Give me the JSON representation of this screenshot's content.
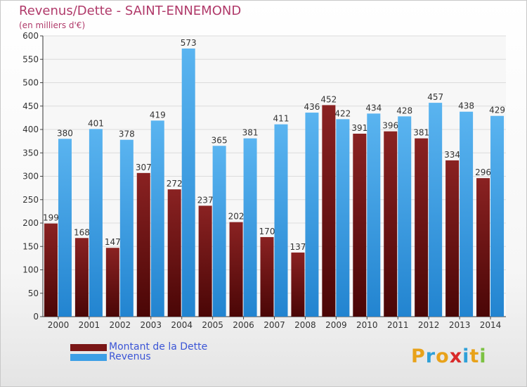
{
  "header": {
    "title": "Revenus/Dette - SAINT-ENNEMOND",
    "subtitle": "(en milliers d'€)"
  },
  "chart_data": {
    "type": "bar",
    "categories": [
      "2000",
      "2001",
      "2002",
      "2003",
      "2004",
      "2005",
      "2006",
      "2007",
      "2008",
      "2009",
      "2010",
      "2011",
      "2012",
      "2013",
      "2014"
    ],
    "series": [
      {
        "name": "Montant de la Dette",
        "color": "#7a1616",
        "values": [
          199,
          168,
          147,
          307,
          272,
          237,
          202,
          170,
          137,
          452,
          391,
          396,
          381,
          334,
          296
        ]
      },
      {
        "name": "Revenus",
        "color": "#3d9fe6",
        "values": [
          380,
          401,
          378,
          419,
          573,
          365,
          381,
          411,
          436,
          422,
          434,
          428,
          457,
          438,
          429
        ]
      }
    ],
    "yticks": [
      "0",
      "50",
      "100",
      "150",
      "200",
      "250",
      "300",
      "350",
      "400",
      "450",
      "500",
      "550",
      "600"
    ],
    "ylim": [
      0,
      600
    ],
    "grid": true,
    "legend_position": "bottom-left"
  },
  "legend": {
    "items": [
      {
        "label": "Montant de la Dette",
        "color": "#7a1616"
      },
      {
        "label": "Revenus",
        "color": "#3d9fe6"
      }
    ]
  },
  "logo": {
    "letters": [
      {
        "ch": "P",
        "color": "#e8a21a"
      },
      {
        "ch": "r",
        "color": "#2fa0d8"
      },
      {
        "ch": "o",
        "color": "#e8a21a"
      },
      {
        "ch": "x",
        "color": "#d92a2a"
      },
      {
        "ch": "i",
        "color": "#2fa0d8"
      },
      {
        "ch": "t",
        "color": "#e8a21a"
      },
      {
        "ch": "i",
        "color": "#7cc242"
      }
    ]
  }
}
